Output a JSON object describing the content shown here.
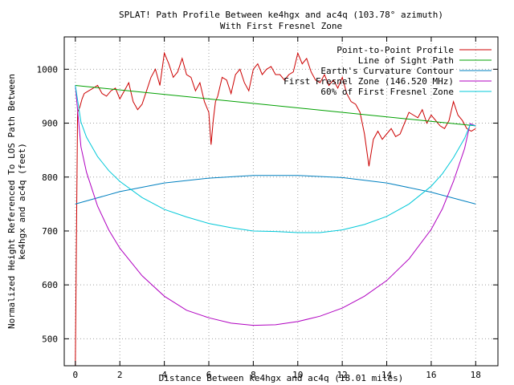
{
  "chart_data": {
    "type": "line",
    "title": "SPLAT! Path Profile Between ke4hgx and ac4q (103.78° azimuth)",
    "subtitle": "With First Fresnel Zone",
    "xlabel": "Distance Between ke4hgx and ac4q (18.01 miles)",
    "ylabel_line1": "Normalized Height Referenced To LOS Path Between",
    "ylabel_line2": "ke4hgx and ac4q (feet)",
    "xlim": [
      -0.5,
      19
    ],
    "ylim": [
      450,
      1060
    ],
    "xticks": [
      0,
      2,
      4,
      6,
      8,
      10,
      12,
      14,
      16,
      18
    ],
    "xtick_labels": [
      "0",
      "2",
      "4",
      "6",
      "8",
      "10",
      "12",
      "14",
      "16",
      "18"
    ],
    "yticks": [
      500,
      600,
      700,
      800,
      900,
      1000
    ],
    "ytick_labels": [
      "500",
      "600",
      "700",
      "800",
      "900",
      "1000"
    ],
    "grid": true,
    "legend_position": "top-right",
    "series": [
      {
        "name": "Point-to-Point Profile",
        "color": "#cc0000",
        "x": [
          0,
          0.05,
          0.1,
          0.2,
          0.3,
          0.4,
          0.6,
          0.8,
          1.0,
          1.2,
          1.4,
          1.6,
          1.8,
          2.0,
          2.2,
          2.4,
          2.6,
          2.8,
          3.0,
          3.2,
          3.4,
          3.6,
          3.8,
          4.0,
          4.2,
          4.4,
          4.6,
          4.8,
          5.0,
          5.2,
          5.4,
          5.6,
          5.8,
          6.0,
          6.1,
          6.2,
          6.3,
          6.4,
          6.6,
          6.8,
          7.0,
          7.2,
          7.4,
          7.6,
          7.8,
          8.0,
          8.2,
          8.4,
          8.6,
          8.8,
          9.0,
          9.2,
          9.4,
          9.6,
          9.8,
          10.0,
          10.2,
          10.4,
          10.6,
          10.8,
          11.0,
          11.2,
          11.4,
          11.6,
          11.8,
          12.0,
          12.2,
          12.4,
          12.6,
          12.8,
          13.0,
          13.2,
          13.4,
          13.6,
          13.8,
          14.0,
          14.2,
          14.4,
          14.6,
          14.8,
          15.0,
          15.2,
          15.4,
          15.6,
          15.8,
          16.0,
          16.2,
          16.4,
          16.6,
          16.8,
          17.0,
          17.2,
          17.4,
          17.6,
          17.8,
          18.0
        ],
        "values": [
          450,
          690,
          920,
          930,
          945,
          955,
          960,
          965,
          970,
          955,
          950,
          960,
          965,
          945,
          960,
          975,
          940,
          925,
          935,
          960,
          985,
          1000,
          970,
          1030,
          1010,
          985,
          995,
          1020,
          990,
          985,
          960,
          975,
          940,
          920,
          860,
          905,
          940,
          950,
          985,
          980,
          955,
          990,
          1000,
          975,
          960,
          1000,
          1010,
          990,
          1000,
          1005,
          990,
          990,
          980,
          990,
          995,
          1030,
          1010,
          1020,
          995,
          980,
          975,
          990,
          970,
          980,
          965,
          985,
          955,
          940,
          935,
          920,
          880,
          820,
          870,
          885,
          870,
          880,
          890,
          875,
          880,
          900,
          920,
          915,
          910,
          925,
          900,
          915,
          905,
          895,
          890,
          905,
          940,
          915,
          905,
          890,
          885,
          890
        ]
      },
      {
        "name": "Line of Sight Path",
        "color": "#00a000",
        "x": [
          0,
          18
        ],
        "values": [
          970,
          895
        ]
      },
      {
        "name": "Earth's Curvature Contour",
        "color": "#0080c0",
        "x": [
          0,
          2,
          4,
          6,
          8,
          9,
          10,
          12,
          14,
          16,
          18
        ],
        "values": [
          750,
          773,
          789,
          798,
          803,
          803,
          803,
          799,
          789,
          772,
          750
        ]
      },
      {
        "name": "First Fresnel Zone (146.520 MHz)",
        "color": "#b000c0",
        "x": [
          0,
          0.25,
          0.5,
          1,
          1.5,
          2,
          3,
          4,
          5,
          6,
          7,
          8,
          9,
          10,
          11,
          12,
          13,
          14,
          15,
          16,
          16.5,
          17,
          17.5,
          17.75,
          18
        ],
        "values": [
          970,
          856,
          809,
          746,
          702,
          668,
          617,
          579,
          553,
          539,
          529,
          525,
          526,
          532,
          542,
          557,
          579,
          608,
          648,
          703,
          741,
          792,
          853,
          899,
          895
        ]
      },
      {
        "name": "60% of First Fresnel Zone",
        "color": "#00c8d8",
        "x": [
          0,
          0.25,
          0.5,
          1,
          1.5,
          2,
          3,
          4,
          5,
          6,
          7,
          8,
          9,
          10,
          11,
          12,
          13,
          14,
          15,
          16,
          16.5,
          17,
          17.5,
          17.75,
          18
        ],
        "values": [
          970,
          902,
          874,
          838,
          812,
          792,
          762,
          740,
          726,
          714,
          706,
          700,
          699,
          697,
          697,
          702,
          712,
          727,
          750,
          783,
          806,
          836,
          872,
          897,
          895
        ]
      }
    ]
  }
}
